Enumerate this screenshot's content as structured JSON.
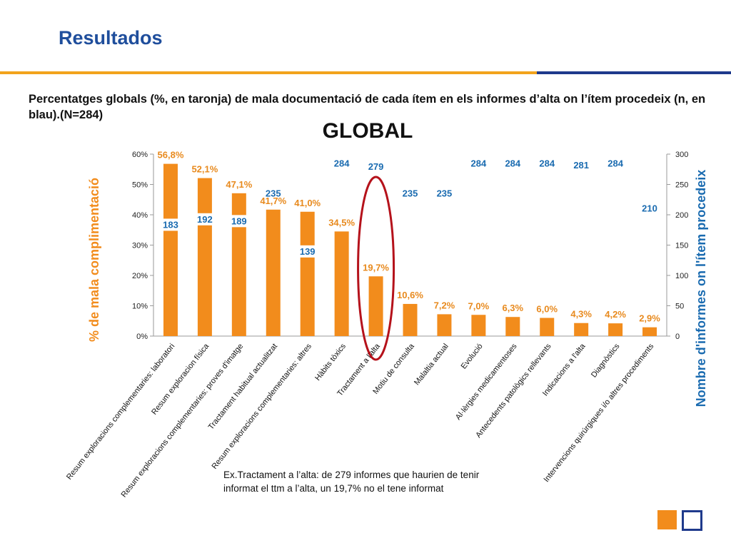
{
  "header": {
    "title": "Resultados",
    "subtitle": "Percentatges globals (%, en taronja) de mala documentació de cada ítem en els informes d’alta on l’ítem procedeix (n, en blau).(N=284)"
  },
  "note": "Ex.Tractament a l’alta: de 279 informes que haurien de tenir informat el ttm a l’alta, un 19,7% no el tene informat",
  "colors": {
    "bar": "#f28c1c",
    "pct_label": "#e88a1e",
    "n_label": "#1a6bb0",
    "accent_blue": "#1f3a8c",
    "highlight": "#b5121b"
  },
  "chart_data": {
    "type": "bar",
    "title": "GLOBAL",
    "ylabel": "% de mala complimentació",
    "y2label": "Nombre d'informes on l'ítem procedeix",
    "ylim": [
      0,
      60
    ],
    "y2lim": [
      0,
      300
    ],
    "y_ticks": [
      "0%",
      "10%",
      "20%",
      "30%",
      "40%",
      "50%",
      "60%"
    ],
    "y2_ticks": [
      "0",
      "50",
      "100",
      "150",
      "200",
      "250",
      "300"
    ],
    "categories": [
      "Resum exploracions complementaries: laboratori",
      "Resum exploracion física",
      "Resum exploracions complementaries: proves d'imatge",
      "Tractament habitual actualitzat",
      "Resum exploracions complementaries: altres",
      "Hàbits tòxics",
      "Tractament a l'alta",
      "Motiu de consulta",
      "Malaltia actual",
      "Evolució",
      "Al·lèrgies medicamentoses",
      "Antecedents patològics rellevants",
      "Indicacions a l'alta",
      "Diagnòstics",
      "Intervencions quirúrgiques i/o altres procediments"
    ],
    "series": [
      {
        "name": "% de mala complimentació",
        "axis": "left",
        "values": [
          56.8,
          52.1,
          47.1,
          41.7,
          41.0,
          34.5,
          19.7,
          10.6,
          7.2,
          7.0,
          6.3,
          6.0,
          4.3,
          4.2,
          2.9
        ],
        "labels": [
          "56,8%",
          "52,1%",
          "47,1%",
          "41,7%",
          "41,0%",
          "34,5%",
          "19,7%",
          "10,6%",
          "7,2%",
          "7,0%",
          "6,3%",
          "6,0%",
          "4,3%",
          "4,2%",
          "2,9%"
        ]
      },
      {
        "name": "Nombre d'informes on l'ítem procedeix",
        "axis": "right",
        "values": [
          183,
          192,
          189,
          235,
          139,
          284,
          279,
          235,
          235,
          284,
          284,
          284,
          281,
          284,
          210
        ],
        "labels": [
          "183",
          "192",
          "189",
          "235",
          "139",
          "284",
          "279",
          "235",
          "235",
          "284",
          "284",
          "284",
          "281",
          "284",
          "210"
        ]
      }
    ],
    "highlighted_category": "Tractament a l'alta",
    "grid": false
  }
}
